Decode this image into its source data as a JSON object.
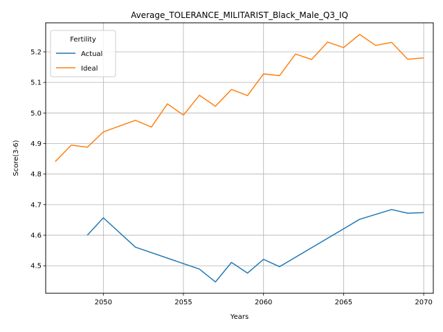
{
  "chart_data": {
    "type": "line",
    "title": "Average_TOLERANCE_MILITARIST_Black_Male_Q3_IQ",
    "xlabel": "Years",
    "ylabel": "Score(3-6)",
    "xlim": [
      2046.4,
      2070.6
    ],
    "ylim": [
      4.41,
      5.295
    ],
    "xticks": [
      2050,
      2055,
      2060,
      2065,
      2070
    ],
    "yticks": [
      4.5,
      4.6,
      4.7,
      4.8,
      4.9,
      5.0,
      5.1,
      5.2
    ],
    "ytick_labels": [
      "4.5",
      "4.6",
      "4.7",
      "4.8",
      "4.9",
      "5.0",
      "5.1",
      "5.2"
    ],
    "grid": true,
    "legend": {
      "title": "Fertility",
      "placement": "upper-left"
    },
    "series": [
      {
        "name": "Actual",
        "color": "#1f77b4",
        "x": [
          2049,
          2050,
          2052,
          2056,
          2057,
          2058,
          2059,
          2060,
          2061,
          2066,
          2068,
          2069,
          2070
        ],
        "y": [
          4.6,
          4.657,
          4.561,
          4.489,
          4.447,
          4.511,
          4.476,
          4.521,
          4.497,
          4.652,
          4.684,
          4.672,
          4.674
        ]
      },
      {
        "name": "Ideal",
        "color": "#ff7f0e",
        "x": [
          2047,
          2048,
          2049,
          2050,
          2052,
          2053,
          2054,
          2055,
          2056,
          2057,
          2058,
          2059,
          2060,
          2061,
          2062,
          2063,
          2064,
          2065,
          2066,
          2067,
          2068,
          2069,
          2070
        ],
        "y": [
          4.841,
          4.895,
          4.888,
          4.938,
          4.976,
          4.954,
          5.03,
          4.993,
          5.058,
          5.022,
          5.077,
          5.057,
          5.128,
          5.122,
          5.193,
          5.175,
          5.232,
          5.214,
          5.257,
          5.221,
          5.231,
          5.176,
          5.18
        ]
      }
    ]
  }
}
